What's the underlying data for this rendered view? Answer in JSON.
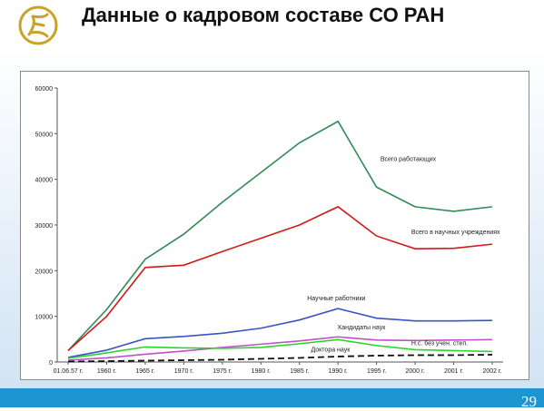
{
  "slide": {
    "title": "Данные о кадровом составе  СО РАН",
    "page_number": "29",
    "logo_icon": "sigma-logo-icon"
  },
  "chart_data": {
    "type": "line",
    "title": "",
    "xlabel": "",
    "ylabel": "",
    "categories": [
      "01.06.57 г.",
      "1960 г.",
      "1965 г.",
      "1970 г.",
      "1975 г.",
      "1980 г.",
      "1985 г.",
      "1990 г.",
      "1995 г.",
      "2000 г.",
      "2001 г.",
      "2002 г."
    ],
    "ylim": [
      0,
      60000
    ],
    "yticks": [
      "0",
      "10000",
      "20000",
      "30000",
      "40000",
      "50000",
      "60000"
    ],
    "grid": false,
    "series": [
      {
        "name": "Всего работающих",
        "color": "#2e8b57",
        "dash": false,
        "values": [
          2500,
          11500,
          22500,
          28000,
          35000,
          41500,
          48000,
          52700,
          38300,
          34000,
          33000,
          34000
        ]
      },
      {
        "name": "Всего в научных учреждениях",
        "color": "#d11a1a",
        "dash": false,
        "values": [
          2500,
          10000,
          20700,
          21200,
          24200,
          27100,
          30000,
          34000,
          27600,
          24800,
          24900,
          25800
        ]
      },
      {
        "name": "Научные работники",
        "color": "#3a54c8",
        "dash": false,
        "values": [
          1000,
          2600,
          5100,
          5600,
          6300,
          7400,
          9200,
          11700,
          9600,
          9000,
          9000,
          9100
        ]
      },
      {
        "name": "Кандидаты наук",
        "color": "#c050c8",
        "dash": false,
        "values": [
          400,
          900,
          1700,
          2400,
          3200,
          3900,
          4600,
          5500,
          4800,
          4700,
          4800,
          4900
        ]
      },
      {
        "name": "Н.с. без учен. степ.",
        "color": "#2bd62b",
        "dash": false,
        "values": [
          800,
          2000,
          3300,
          3100,
          3000,
          3200,
          4000,
          4900,
          3600,
          2700,
          2500,
          2300
        ]
      },
      {
        "name": "Доктора наук",
        "color": "#111111",
        "dash": true,
        "values": [
          100,
          200,
          300,
          400,
          500,
          700,
          900,
          1200,
          1400,
          1500,
          1500,
          1600
        ]
      }
    ]
  }
}
